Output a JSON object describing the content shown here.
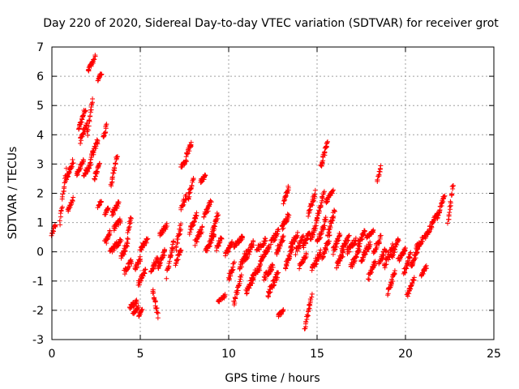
{
  "chart_data": {
    "type": "scatter",
    "title": "Day 220 of 2020, Sidereal Day-to-day VTEC variation (SDTVAR) for receiver grot",
    "xlabel": "GPS time / hours",
    "ylabel": "SDTVAR / TECUs",
    "xlim": [
      0,
      25
    ],
    "ylim": [
      -3,
      7
    ],
    "xticks": [
      "0",
      "5",
      "10",
      "15",
      "20",
      "25"
    ],
    "yticks": [
      "-3",
      "-2",
      "-1",
      "0",
      "1",
      "2",
      "3",
      "4",
      "5",
      "6",
      "7"
    ],
    "grid": true,
    "marker": "+",
    "color": "#ff0000",
    "segments": [
      [
        0.0,
        0.2,
        0.6,
        0.9,
        0.15
      ],
      [
        0.45,
        0.8,
        1.0,
        2.8,
        0.25
      ],
      [
        0.8,
        1.2,
        2.5,
        3.1,
        0.2
      ],
      [
        0.9,
        1.2,
        1.4,
        1.8,
        0.15
      ],
      [
        1.4,
        1.8,
        2.6,
        3.2,
        0.15
      ],
      [
        1.5,
        1.9,
        4.2,
        4.9,
        0.2
      ],
      [
        1.6,
        2.0,
        3.8,
        4.4,
        0.2
      ],
      [
        1.8,
        2.2,
        2.6,
        3.0,
        0.15
      ],
      [
        2.05,
        2.45,
        6.2,
        6.7,
        0.15
      ],
      [
        2.0,
        2.3,
        4.0,
        5.3,
        0.25
      ],
      [
        2.2,
        2.6,
        3.2,
        3.8,
        0.2
      ],
      [
        2.6,
        2.8,
        5.85,
        6.1,
        0.1
      ],
      [
        2.4,
        2.7,
        2.5,
        3.0,
        0.15
      ],
      [
        2.6,
        2.8,
        1.55,
        1.75,
        0.1
      ],
      [
        2.9,
        3.1,
        3.9,
        4.3,
        0.15
      ],
      [
        3.0,
        3.2,
        1.3,
        1.5,
        0.1
      ],
      [
        3.0,
        3.3,
        0.3,
        0.7,
        0.2
      ],
      [
        3.35,
        3.7,
        2.3,
        3.3,
        0.2
      ],
      [
        3.4,
        3.8,
        1.3,
        1.7,
        0.2
      ],
      [
        3.5,
        3.9,
        0.8,
        1.1,
        0.15
      ],
      [
        3.3,
        3.9,
        0.0,
        0.4,
        0.2
      ],
      [
        3.9,
        4.3,
        -0.3,
        0.4,
        0.25
      ],
      [
        4.1,
        4.5,
        -0.7,
        -0.3,
        0.2
      ],
      [
        4.3,
        4.5,
        0.7,
        1.2,
        0.15
      ],
      [
        4.4,
        4.8,
        -1.9,
        -1.7,
        0.15
      ],
      [
        4.6,
        4.9,
        -2.1,
        -1.9,
        0.1
      ],
      [
        4.7,
        5.0,
        -0.6,
        -0.2,
        0.2
      ],
      [
        4.9,
        5.3,
        -1.1,
        -0.6,
        0.2
      ],
      [
        4.9,
        5.1,
        -2.2,
        -2.0,
        0.1
      ],
      [
        5.0,
        5.4,
        0.1,
        0.4,
        0.15
      ],
      [
        5.6,
        6.0,
        -0.7,
        -0.2,
        0.2
      ],
      [
        5.7,
        6.0,
        -1.3,
        -2.2,
        0.15
      ],
      [
        6.1,
        6.5,
        0.6,
        0.9,
        0.15
      ],
      [
        6.0,
        6.4,
        -0.5,
        0.0,
        0.2
      ],
      [
        6.5,
        6.9,
        -0.8,
        0.4,
        0.25
      ],
      [
        7.0,
        7.3,
        0.1,
        0.9,
        0.2
      ],
      [
        7.0,
        7.3,
        -0.4,
        0.1,
        0.15
      ],
      [
        7.3,
        7.6,
        2.9,
        3.1,
        0.1
      ],
      [
        7.3,
        7.6,
        1.5,
        1.9,
        0.15
      ],
      [
        7.6,
        7.9,
        3.3,
        3.7,
        0.15
      ],
      [
        7.7,
        8.0,
        1.8,
        2.5,
        0.2
      ],
      [
        7.8,
        8.2,
        0.7,
        1.3,
        0.2
      ],
      [
        8.1,
        8.5,
        0.3,
        0.8,
        0.2
      ],
      [
        8.4,
        8.7,
        2.4,
        2.6,
        0.1
      ],
      [
        8.6,
        9.0,
        1.2,
        1.7,
        0.2
      ],
      [
        8.7,
        9.2,
        0.0,
        0.6,
        0.2
      ],
      [
        9.0,
        9.4,
        0.5,
        1.3,
        0.2
      ],
      [
        9.3,
        9.6,
        0.1,
        0.5,
        0.15
      ],
      [
        9.4,
        9.8,
        -1.7,
        -1.5,
        0.1
      ],
      [
        9.8,
        10.2,
        -0.1,
        0.3,
        0.15
      ],
      [
        10.0,
        10.3,
        -0.9,
        -0.4,
        0.2
      ],
      [
        10.3,
        10.8,
        0.2,
        0.5,
        0.15
      ],
      [
        10.3,
        10.7,
        -1.8,
        -0.8,
        0.25
      ],
      [
        10.6,
        11.0,
        -0.6,
        0.0,
        0.2
      ],
      [
        10.9,
        11.4,
        -0.3,
        0.3,
        0.2
      ],
      [
        11.0,
        11.4,
        -1.4,
        -0.9,
        0.2
      ],
      [
        11.3,
        11.8,
        -0.9,
        -0.5,
        0.2
      ],
      [
        11.6,
        12.1,
        0.1,
        0.4,
        0.2
      ],
      [
        11.8,
        12.3,
        -0.3,
        0.2,
        0.2
      ],
      [
        12.0,
        12.5,
        -0.9,
        -0.5,
        0.2
      ],
      [
        12.2,
        12.8,
        -1.5,
        -0.7,
        0.25
      ],
      [
        12.4,
        12.8,
        0.3,
        0.7,
        0.2
      ],
      [
        12.7,
        13.1,
        0.0,
        0.5,
        0.2
      ],
      [
        12.8,
        13.1,
        -2.2,
        -2.0,
        0.1
      ],
      [
        13.0,
        13.4,
        0.8,
        1.3,
        0.2
      ],
      [
        13.1,
        13.4,
        1.7,
        2.2,
        0.15
      ],
      [
        13.2,
        13.6,
        -0.5,
        0.1,
        0.2
      ],
      [
        13.5,
        13.9,
        0.2,
        0.6,
        0.2
      ],
      [
        13.8,
        14.2,
        0.0,
        0.5,
        0.2
      ],
      [
        14.0,
        14.4,
        -0.5,
        -0.1,
        0.15
      ],
      [
        14.2,
        14.6,
        0.2,
        0.7,
        0.2
      ],
      [
        14.3,
        14.7,
        -2.6,
        -1.5,
        0.15
      ],
      [
        14.5,
        14.9,
        1.3,
        2.0,
        0.2
      ],
      [
        14.6,
        15.0,
        0.4,
        1.0,
        0.25
      ],
      [
        14.7,
        15.2,
        -0.6,
        0.0,
        0.25
      ],
      [
        15.0,
        15.4,
        1.2,
        2.0,
        0.25
      ],
      [
        15.0,
        15.5,
        0.3,
        1.1,
        0.3
      ],
      [
        15.2,
        15.6,
        2.9,
        3.8,
        0.15
      ],
      [
        15.3,
        15.7,
        -0.2,
        0.5,
        0.2
      ],
      [
        15.5,
        15.9,
        1.7,
        2.1,
        0.1
      ],
      [
        15.6,
        16.0,
        0.6,
        1.4,
        0.2
      ],
      [
        15.9,
        16.3,
        0.0,
        0.6,
        0.2
      ],
      [
        16.1,
        16.5,
        -0.5,
        0.0,
        0.2
      ],
      [
        16.4,
        16.8,
        0.1,
        0.5,
        0.2
      ],
      [
        16.7,
        17.2,
        0.0,
        0.4,
        0.2
      ],
      [
        16.9,
        17.4,
        -0.5,
        0.1,
        0.2
      ],
      [
        17.3,
        17.7,
        0.2,
        0.7,
        0.2
      ],
      [
        17.5,
        18.0,
        -0.3,
        0.3,
        0.2
      ],
      [
        17.8,
        18.2,
        0.5,
        0.7,
        0.1
      ],
      [
        17.9,
        18.3,
        -0.9,
        -0.3,
        0.2
      ],
      [
        18.2,
        18.6,
        0.0,
        0.5,
        0.2
      ],
      [
        18.4,
        18.6,
        2.4,
        2.9,
        0.1
      ],
      [
        18.5,
        18.9,
        -0.4,
        0.1,
        0.2
      ],
      [
        18.8,
        19.3,
        -0.5,
        0.2,
        0.25
      ],
      [
        19.0,
        19.4,
        -1.4,
        -0.7,
        0.2
      ],
      [
        19.2,
        19.6,
        -0.2,
        0.4,
        0.2
      ],
      [
        19.6,
        20.0,
        -0.3,
        0.1,
        0.15
      ],
      [
        19.9,
        20.3,
        -0.7,
        -0.1,
        0.2
      ],
      [
        20.1,
        20.5,
        -1.5,
        -0.9,
        0.15
      ],
      [
        20.3,
        20.7,
        -0.5,
        0.0,
        0.2
      ],
      [
        20.6,
        21.0,
        0.1,
        0.5,
        0.2
      ],
      [
        20.9,
        21.2,
        -0.8,
        -0.5,
        0.1
      ],
      [
        21.1,
        21.5,
        0.5,
        0.9,
        0.15
      ],
      [
        21.5,
        21.8,
        1.0,
        1.3,
        0.1
      ],
      [
        21.8,
        22.2,
        1.2,
        1.9,
        0.2
      ],
      [
        22.4,
        22.7,
        1.0,
        2.3,
        0.2
      ]
    ]
  }
}
